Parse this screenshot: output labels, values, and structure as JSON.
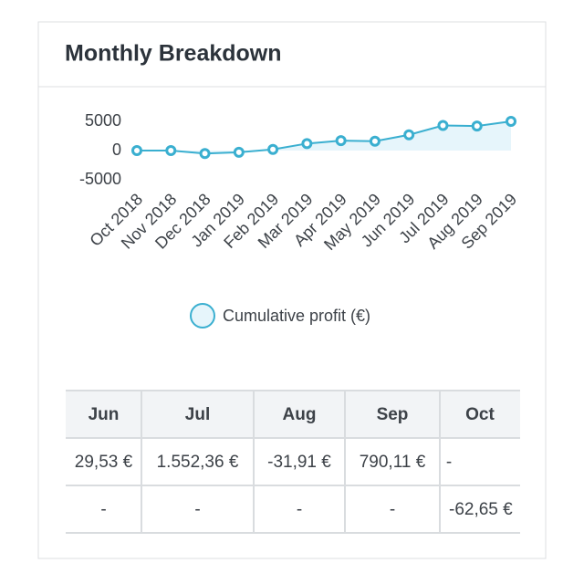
{
  "card": {
    "title": "Monthly Breakdown"
  },
  "chart_data": {
    "type": "line",
    "categories": [
      "Oct 2018",
      "Nov 2018",
      "Dec 2018",
      "Jan 2019",
      "Feb 2019",
      "Mar 2019",
      "Apr 2019",
      "May 2019",
      "Jun 2019",
      "Jul 2019",
      "Aug 2019",
      "Sep 2019"
    ],
    "series": [
      {
        "name": "Cumulative profit (€)",
        "color": "#3aafd0",
        "values": [
          0,
          0,
          -500,
          -300,
          200,
          1200,
          1700,
          1600,
          2700,
          4300,
          4200,
          5000
        ]
      }
    ],
    "ylim": [
      -5000,
      5000
    ],
    "yticks": [
      -5000,
      0,
      5000
    ],
    "grid": false,
    "legend": "bottom"
  },
  "table": {
    "header": [
      "Jun",
      "Jul",
      "Aug",
      "Sep",
      "Oct"
    ],
    "rows": [
      [
        "29,53 €",
        "1.552,36 €",
        "-31,91 €",
        "790,11 €",
        "-"
      ],
      [
        "-",
        "-",
        "-",
        "-",
        "-62,65 €"
      ]
    ]
  }
}
